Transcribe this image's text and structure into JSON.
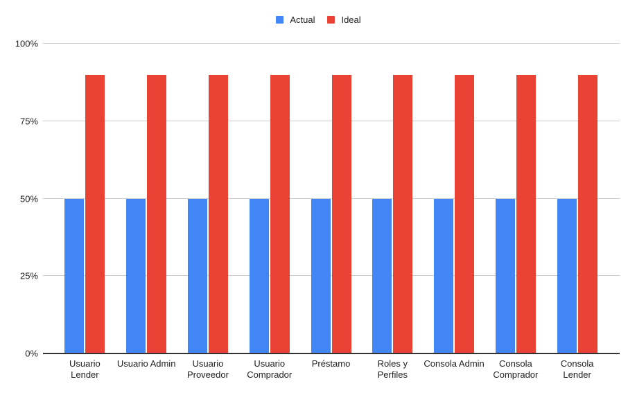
{
  "chart_data": {
    "type": "bar",
    "title": "",
    "categories": [
      "Usuario Lender",
      "Usuario Admin",
      "Usuario Proveedor",
      "Usuario Comprador",
      "Préstamo",
      "Roles y Perfiles",
      "Consola Admin",
      "Consola Comprador",
      "Consola Lender"
    ],
    "categories_display": [
      "Usuario Lender",
      "Usuario Admin",
      "Usuario\nProveedor",
      "Usuario\nComprador",
      "Préstamo",
      "Roles y Perfiles",
      "Consola Admin",
      "Consola\nComprador",
      "Consola\nLender"
    ],
    "series": [
      {
        "name": "Actual",
        "color": "#4285F4",
        "values": [
          50,
          50,
          50,
          50,
          50,
          50,
          50,
          50,
          50
        ]
      },
      {
        "name": "Ideal",
        "color": "#EA4335",
        "values": [
          90,
          90,
          90,
          90,
          90,
          90,
          90,
          90,
          90
        ]
      }
    ],
    "xlabel": "",
    "ylabel": "",
    "ylim": [
      0,
      100
    ],
    "yticks": [
      "0%",
      "25%",
      "50%",
      "75%",
      "100%"
    ],
    "ytick_values": [
      0,
      25,
      50,
      75,
      100
    ],
    "grid": true,
    "legend_position": "top",
    "colors": {
      "gridline": "#cccccc",
      "baseline": "#333333",
      "text": "#202124",
      "background": "#ffffff"
    }
  }
}
